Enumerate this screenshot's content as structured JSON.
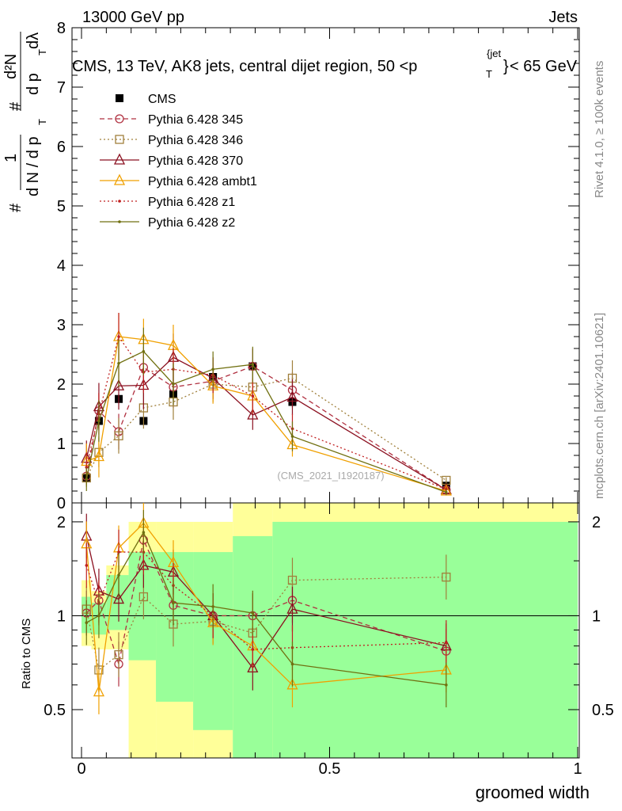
{
  "header": {
    "left": "13000 GeV pp",
    "right": "Jets"
  },
  "watermark": {
    "rivet": "Rivet 4.1.0, ≥ 100k events",
    "mcplots": "mcplots.cern.ch [arXiv:2401.10621]",
    "analysis": "(CMS_2021_I1920187)"
  },
  "top_title": {
    "main": "CMS, 13 TeV, AK8 jets, central dijet region, 50 <p",
    "sup": "{jet",
    "sub": "T",
    "brace": "}",
    "tail": "< 65 GeV"
  },
  "ylabel_top": {
    "hash1": "#",
    "one": "1",
    "dN": "d N / d p",
    "T1": "T",
    "hash2": "#",
    "d2N": "d²N",
    "dpT": "d p",
    "T2": "T",
    "dlam": "dλ"
  },
  "ylabel_ratio": "Ratio to CMS",
  "xlabel": "groomed width",
  "colors": {
    "cms": "#000000",
    "p345": "#b03040",
    "p346": "#a0803c",
    "p370": "#8b1020",
    "ambt1": "#f0a000",
    "z1": "#c02020",
    "z2": "#707010",
    "band_inner": "#99ff99",
    "band_outer": "#ffff99"
  },
  "chart_data": [
    {
      "type": "line",
      "panel": "main",
      "title": "CMS, 13 TeV, AK8 jets, central dijet region, 50 <pT{jet}< 65 GeV",
      "xlabel": "groomed width",
      "ylabel": "1/N dN/dpT ... d²N/dpT dλ",
      "xlim": [
        0,
        1
      ],
      "ylim": [
        0,
        8
      ],
      "yticks": [
        "0",
        "1",
        "2",
        "3",
        "4",
        "5",
        "6",
        "7",
        "8"
      ],
      "x": [
        0.01,
        0.035,
        0.075,
        0.125,
        0.185,
        0.265,
        0.345,
        0.425,
        0.735
      ],
      "series": [
        {
          "name": "CMS",
          "style": "marker-square",
          "color": "#000000",
          "values": [
            0.42,
            1.38,
            1.75,
            1.38,
            1.83,
            2.12,
            2.3,
            1.7,
            0.29
          ],
          "errors": [
            0.05,
            0.05,
            0.07,
            0.05,
            0.07,
            0.07,
            0.07,
            0.07,
            0.03
          ]
        },
        {
          "name": "Pythia 6.428 345",
          "style": "circle-dashed",
          "color": "#b03040",
          "values": [
            0.45,
            1.55,
            1.2,
            2.28,
            1.95,
            2.05,
            2.3,
            1.9,
            0.22
          ],
          "errors": [
            0.15,
            0.3,
            0.3,
            0.35,
            0.35,
            0.3,
            0.3,
            0.3,
            0.05
          ]
        },
        {
          "name": "Pythia 6.428 346",
          "style": "square-dotted",
          "color": "#a0803c",
          "values": [
            0.42,
            0.85,
            1.13,
            1.6,
            1.7,
            2.0,
            1.95,
            2.1,
            0.38
          ],
          "errors": [
            0.15,
            0.25,
            0.3,
            0.35,
            0.3,
            0.3,
            0.3,
            0.3,
            0.05
          ]
        },
        {
          "name": "Pythia 6.428 370",
          "style": "triangle-solid",
          "color": "#8b1020",
          "values": [
            0.75,
            1.62,
            1.97,
            1.98,
            2.45,
            2.1,
            1.48,
            1.78,
            0.22
          ],
          "errors": [
            0.3,
            0.4,
            0.4,
            0.4,
            0.4,
            0.35,
            0.25,
            0.3,
            0.05
          ]
        },
        {
          "name": "Pythia 6.428 ambt1",
          "style": "triangle-solid",
          "color": "#f0a000",
          "values": [
            0.7,
            0.78,
            2.8,
            2.75,
            2.65,
            1.97,
            1.8,
            0.98,
            0.2
          ],
          "errors": [
            0.3,
            0.35,
            0.4,
            0.35,
            0.35,
            0.3,
            0.3,
            0.2,
            0.05
          ]
        },
        {
          "name": "Pythia 6.428 z1",
          "style": "dot-dotted",
          "color": "#c02020",
          "values": [
            0.6,
            1.5,
            2.8,
            2.2,
            2.25,
            2.15,
            1.8,
            1.25,
            0.23
          ],
          "errors": [
            0.25,
            0.35,
            0.4,
            0.35,
            0.35,
            0.3,
            0.3,
            0.25,
            0.05
          ]
        },
        {
          "name": "Pythia 6.428 z2",
          "style": "dot-solid",
          "color": "#707010",
          "values": [
            0.4,
            1.38,
            2.35,
            2.55,
            2.0,
            2.25,
            2.33,
            1.12,
            0.18
          ],
          "errors": [
            0.2,
            0.35,
            0.4,
            0.4,
            0.35,
            0.3,
            0.3,
            0.25,
            0.05
          ]
        }
      ]
    },
    {
      "type": "line",
      "panel": "ratio",
      "ylabel": "Ratio to CMS",
      "xlabel": "groomed width",
      "xlim": [
        0,
        1
      ],
      "ylim": [
        0.35,
        2.3
      ],
      "scale": "log",
      "yticks": [
        "0.5",
        "1",
        "2"
      ],
      "xticks": [
        "0",
        "0.5",
        "1"
      ],
      "x": [
        0.01,
        0.035,
        0.075,
        0.125,
        0.185,
        0.265,
        0.345,
        0.425,
        0.735
      ],
      "band": {
        "edges": [
          0,
          0.02,
          0.05,
          0.095,
          0.15,
          0.225,
          0.305,
          0.385,
          1.0
        ],
        "inner_low": [
          0.88,
          0.87,
          0.9,
          0.72,
          0.53,
          0.43,
          0.3,
          0.3
        ],
        "inner_high": [
          1.15,
          1.1,
          1.35,
          1.6,
          1.6,
          1.6,
          1.8,
          2.0
        ],
        "outer_low": [
          0.8,
          0.78,
          0.78,
          0.35,
          0.35,
          0.35,
          0.3,
          0.3
        ],
        "outer_high": [
          1.3,
          1.2,
          1.45,
          2.0,
          2.0,
          2.0,
          2.5,
          2.5
        ]
      },
      "series": [
        {
          "name": "Pythia 6.428 345",
          "color": "#b03040",
          "values": [
            1.02,
            1.12,
            0.7,
            1.75,
            1.08,
            1.0,
            1.0,
            1.12,
            0.77
          ]
        },
        {
          "name": "Pythia 6.428 346",
          "color": "#a0803c",
          "values": [
            1.05,
            0.67,
            0.75,
            1.15,
            0.94,
            0.96,
            0.88,
            1.3,
            1.33
          ]
        },
        {
          "name": "Pythia 6.428 370",
          "color": "#8b1020",
          "values": [
            1.8,
            1.2,
            1.13,
            1.45,
            1.38,
            1.0,
            0.68,
            1.05,
            0.8
          ]
        },
        {
          "name": "Pythia 6.428 ambt1",
          "color": "#f0a000",
          "values": [
            1.7,
            0.57,
            1.65,
            1.98,
            1.48,
            0.95,
            0.8,
            0.6,
            0.67
          ]
        },
        {
          "name": "Pythia 6.428 z1",
          "color": "#c02020",
          "values": [
            1.45,
            1.1,
            1.6,
            1.6,
            1.25,
            1.0,
            0.78,
            0.79,
            0.82
          ]
        },
        {
          "name": "Pythia 6.428 z2",
          "color": "#707010",
          "values": [
            0.95,
            1.0,
            1.35,
            1.85,
            1.1,
            1.07,
            1.02,
            0.7,
            0.6
          ]
        }
      ]
    }
  ]
}
